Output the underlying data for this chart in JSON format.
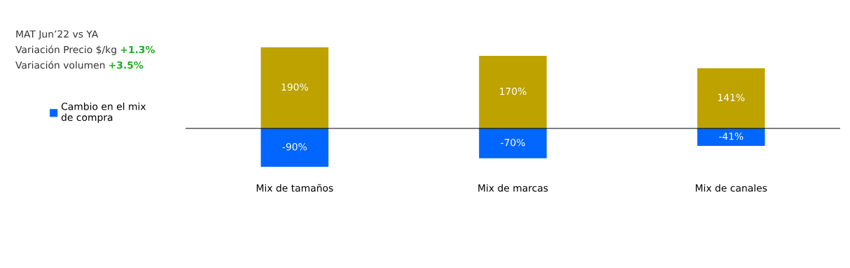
{
  "chart_data": {
    "type": "bar",
    "stacked": true,
    "categories": [
      "Mix de tamaños",
      "Mix de marcas",
      "Mix de canales"
    ],
    "series": [
      {
        "color": "#bda200",
        "values": [
          190,
          170,
          141
        ],
        "value_labels": [
          "190%",
          "170%",
          "141%"
        ]
      },
      {
        "name": "Cambio en el mix\nde compra",
        "color": "#0066ff",
        "values": [
          -90,
          -70,
          -41
        ],
        "value_labels": [
          "-90%",
          "-70%",
          "-41%"
        ]
      }
    ],
    "tick_labels": "x",
    "grid": false,
    "legend": "left",
    "annotations": [
      "MAT Jun’22 vs YA",
      "Variación Precio $/kg",
      "+1.3%",
      "Variación volumen",
      "+3.5%"
    ]
  }
}
